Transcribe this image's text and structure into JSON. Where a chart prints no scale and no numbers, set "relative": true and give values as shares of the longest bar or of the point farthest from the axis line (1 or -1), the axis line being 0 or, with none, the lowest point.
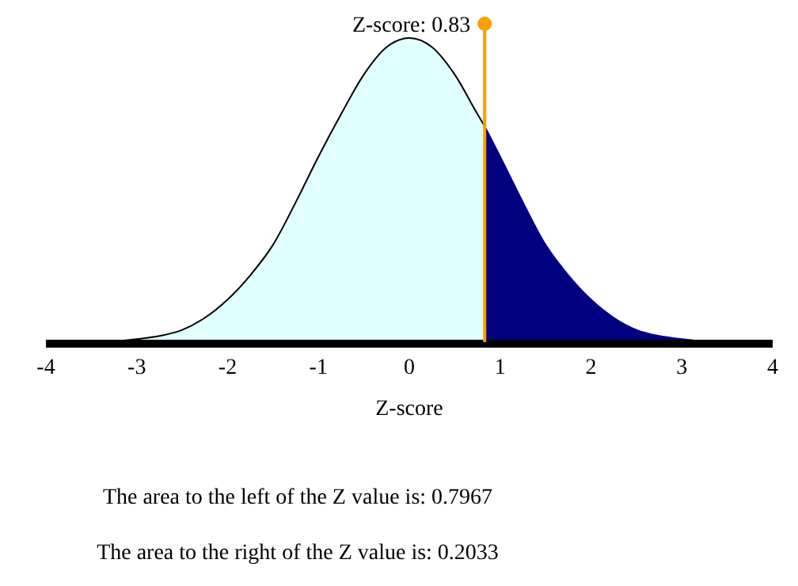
{
  "chart_data": {
    "type": "area",
    "relative": true,
    "xlabel": "Z-score",
    "xlim": [
      -4,
      4
    ],
    "xticks": [
      -4,
      -3,
      -2,
      -1,
      0,
      1,
      2,
      3,
      4
    ],
    "series": [
      {
        "color": "#e0ffff",
        "x": [
          -4,
          -3.5,
          -3,
          -2.75,
          -2.5,
          -2.25,
          -2,
          -1.75,
          -1.5,
          -1.25,
          -1,
          -0.75,
          -0.5,
          -0.25,
          0,
          0.25,
          0.5,
          0.75,
          0.83
        ],
        "values": [
          0,
          0,
          0.01,
          0.02,
          0.04,
          0.08,
          0.14,
          0.22,
          0.32,
          0.46,
          0.61,
          0.75,
          0.88,
          0.97,
          1,
          0.97,
          0.88,
          0.75,
          0.71
        ]
      },
      {
        "color": "#000080",
        "x": [
          0.83,
          1,
          1.25,
          1.5,
          1.75,
          2,
          2.25,
          2.5,
          2.75,
          3,
          3.5,
          4
        ],
        "values": [
          0.71,
          0.61,
          0.46,
          0.32,
          0.22,
          0.14,
          0.08,
          0.04,
          0.02,
          0.01,
          0,
          0
        ]
      }
    ],
    "ref_lines": [
      {
        "axis": "x",
        "value": 0.83,
        "label": "Z-score: 0.83",
        "color": "#f5a000"
      }
    ],
    "annotations": [
      "The area to the left of the Z value is: 0.7967",
      "The area to the right of the Z value is: 0.2033"
    ]
  }
}
